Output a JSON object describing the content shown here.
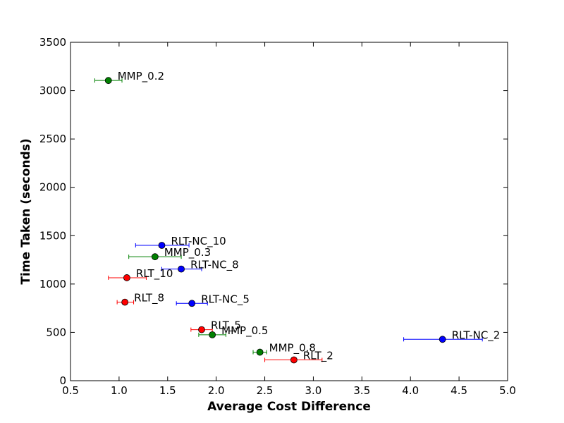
{
  "chart_data": {
    "type": "scatter",
    "title": "",
    "xlabel": "Average Cost Difference",
    "ylabel": "Time Taken (seconds)",
    "xlim": [
      0.5,
      5.0
    ],
    "ylim": [
      0,
      3500
    ],
    "xticks": [
      "0.5",
      "1.0",
      "1.5",
      "2.0",
      "2.5",
      "3.0",
      "3.5",
      "4.0",
      "4.5",
      "5.0"
    ],
    "yticks": [
      "0",
      "500",
      "1000",
      "1500",
      "2000",
      "2500",
      "3000",
      "3500"
    ],
    "grid": false,
    "legend": "none",
    "error_bars": "horizontal",
    "colors": {
      "RLT": "#ff0000",
      "RLT-NC": "#0000ff",
      "MMP": "#008000"
    },
    "points": [
      {
        "label": "MMP_0.2",
        "group": "MMP",
        "x": 0.89,
        "y": 3105,
        "xerr": [
          0.75,
          1.03
        ]
      },
      {
        "label": "RLT-NC_10",
        "group": "RLT-NC",
        "x": 1.44,
        "y": 1400,
        "xerr": [
          1.17,
          1.72
        ]
      },
      {
        "label": "MMP_0.3",
        "group": "MMP",
        "x": 1.37,
        "y": 1282,
        "xerr": [
          1.1,
          1.64
        ]
      },
      {
        "label": "RLT-NC_8",
        "group": "RLT-NC",
        "x": 1.64,
        "y": 1155,
        "xerr": [
          1.44,
          1.85
        ]
      },
      {
        "label": "RLT_10",
        "group": "RLT",
        "x": 1.08,
        "y": 1065,
        "xerr": [
          0.89,
          1.28
        ]
      },
      {
        "label": "RLT_8",
        "group": "RLT",
        "x": 1.06,
        "y": 812,
        "xerr": [
          0.98,
          1.15
        ]
      },
      {
        "label": "RLT-NC_5",
        "group": "RLT-NC",
        "x": 1.75,
        "y": 800,
        "xerr": [
          1.59,
          1.91
        ]
      },
      {
        "label": "RLT_5",
        "group": "RLT",
        "x": 1.85,
        "y": 528,
        "xerr": [
          1.74,
          1.96
        ]
      },
      {
        "label": "MMP_0.5",
        "group": "MMP",
        "x": 1.96,
        "y": 475,
        "xerr": [
          1.82,
          2.1
        ]
      },
      {
        "label": "RLT-NC_2",
        "group": "RLT-NC",
        "x": 4.33,
        "y": 428,
        "xerr": [
          3.93,
          4.74
        ]
      },
      {
        "label": "MMP_0.8",
        "group": "MMP",
        "x": 2.45,
        "y": 295,
        "xerr": [
          2.38,
          2.52
        ]
      },
      {
        "label": "RLT_2",
        "group": "RLT",
        "x": 2.8,
        "y": 215,
        "xerr": [
          2.5,
          3.09
        ]
      }
    ]
  }
}
